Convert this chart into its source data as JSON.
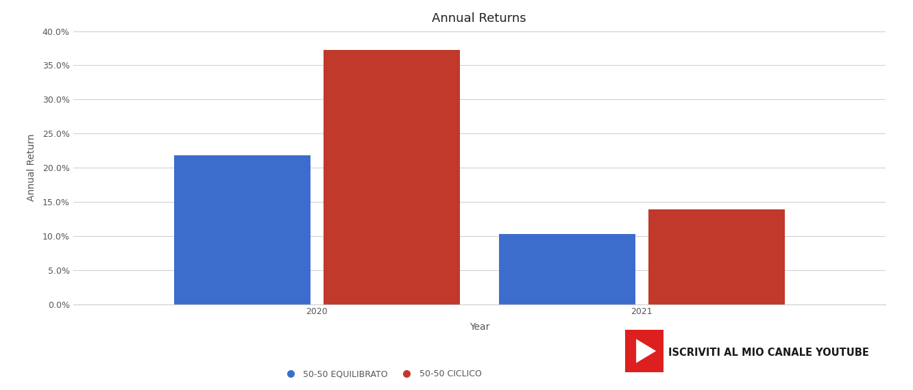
{
  "title": "Annual Returns",
  "xlabel": "Year",
  "ylabel": "Annual Return",
  "years": [
    "2020",
    "2021"
  ],
  "equilibrato_values": [
    0.218,
    0.103
  ],
  "ciclico_values": [
    0.373,
    0.139
  ],
  "bar_color_equilibrato": "#3d6dcc",
  "bar_color_ciclico": "#c0392b",
  "background_color": "#ffffff",
  "grid_color": "#cccccc",
  "ylim": [
    0.0,
    0.4
  ],
  "yticks": [
    0.0,
    0.05,
    0.1,
    0.15,
    0.2,
    0.25,
    0.3,
    0.35,
    0.4
  ],
  "legend_label_equilibrato": "50-50 EQUILIBRATO",
  "legend_label_ciclico": "50-50 CICLICO",
  "title_fontsize": 13,
  "axis_label_fontsize": 10,
  "tick_fontsize": 9,
  "legend_fontsize": 9,
  "bar_width": 0.42,
  "bar_gap": 0.04,
  "youtube_text": "ISCRIVITI AL MIO CANALE YOUTUBE",
  "youtube_text_color": "#1a1a1a",
  "text_color": "#555555"
}
